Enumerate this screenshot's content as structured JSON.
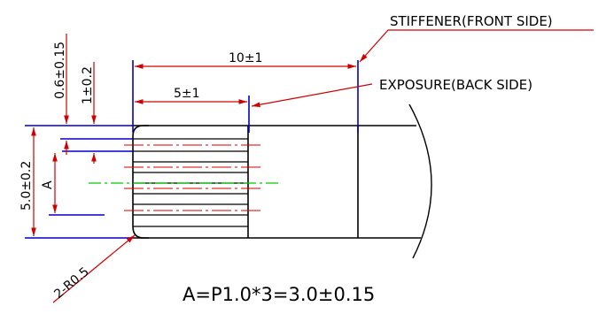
{
  "labels": {
    "stiffener": "STIFFENER(FRONT SIDE)",
    "exposure": "EXPOSURE(BACK SIDE)",
    "formula": "A=P1.0*3=3.0±0.15",
    "corner_radius": "2-R0.5"
  },
  "dimensions": {
    "len_10": "10±1",
    "len_5": "5±1",
    "offset_06": "0.6±0.15",
    "offset_1": "1±0.2",
    "width_5": "5.0±0.2",
    "pitch_a": "A"
  },
  "colors": {
    "outline": "#000000",
    "dimension": "#d00000",
    "extension": "#0000cc",
    "centerline": "#00cc00"
  }
}
